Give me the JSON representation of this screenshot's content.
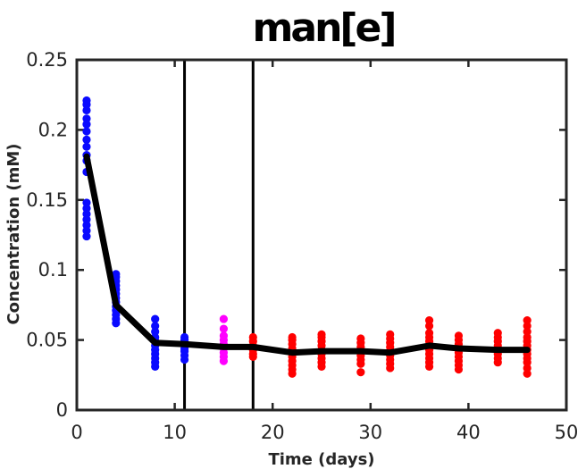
{
  "chart_data": {
    "type": "scatter",
    "title": "man[e]",
    "xlabel": "Time (days)",
    "ylabel": "Concentration (mM)",
    "xlim": [
      0,
      50
    ],
    "ylim": [
      0,
      0.25
    ],
    "xticks": [
      "0",
      "10",
      "20",
      "30",
      "40",
      "50"
    ],
    "yticks": [
      "0",
      "0.05",
      "0.1",
      "0.15",
      "0.2",
      "0.25"
    ],
    "xtick_values": [
      0,
      10,
      20,
      30,
      40,
      50
    ],
    "ytick_values": [
      0,
      0.05,
      0.1,
      0.15,
      0.2,
      0.25
    ],
    "grid": false,
    "vertical_lines": [
      11,
      18
    ],
    "series": [
      {
        "color": "#0a0aff",
        "points": [
          {
            "x": 1,
            "y": [
              0.124,
              0.128,
              0.132,
              0.136,
              0.14,
              0.144,
              0.148,
              0.17,
              0.178,
              0.182,
              0.188,
              0.193,
              0.199,
              0.204,
              0.208,
              0.214,
              0.218,
              0.221
            ]
          },
          {
            "x": 4,
            "y": [
              0.062,
              0.065,
              0.068,
              0.071,
              0.074,
              0.077,
              0.08,
              0.083,
              0.086,
              0.089,
              0.092,
              0.095,
              0.097
            ]
          },
          {
            "x": 8,
            "y": [
              0.031,
              0.034,
              0.037,
              0.04,
              0.043,
              0.046,
              0.049,
              0.052,
              0.056,
              0.06,
              0.065
            ]
          },
          {
            "x": 11,
            "y": [
              0.036,
              0.039,
              0.042,
              0.044,
              0.046,
              0.048,
              0.05,
              0.052
            ]
          }
        ]
      },
      {
        "color": "#ff00ff",
        "points": [
          {
            "x": 15,
            "y": [
              0.035,
              0.038,
              0.041,
              0.044,
              0.047,
              0.05,
              0.053,
              0.058,
              0.065
            ]
          }
        ]
      },
      {
        "color": "#ff0000",
        "points": [
          {
            "x": 18,
            "y": [
              0.038,
              0.04,
              0.043,
              0.046,
              0.049,
              0.052
            ]
          },
          {
            "x": 22,
            "y": [
              0.026,
              0.029,
              0.032,
              0.035,
              0.038,
              0.041,
              0.044,
              0.047,
              0.05,
              0.052
            ]
          },
          {
            "x": 25,
            "y": [
              0.031,
              0.034,
              0.037,
              0.04,
              0.043,
              0.046,
              0.049,
              0.052,
              0.054
            ]
          },
          {
            "x": 29,
            "y": [
              0.027,
              0.033,
              0.036,
              0.039,
              0.042,
              0.045,
              0.048,
              0.051
            ]
          },
          {
            "x": 32,
            "y": [
              0.03,
              0.033,
              0.036,
              0.039,
              0.042,
              0.045,
              0.048,
              0.051,
              0.054
            ]
          },
          {
            "x": 36,
            "y": [
              0.031,
              0.034,
              0.037,
              0.04,
              0.043,
              0.046,
              0.049,
              0.052,
              0.055,
              0.06,
              0.064
            ]
          },
          {
            "x": 39,
            "y": [
              0.029,
              0.032,
              0.035,
              0.038,
              0.041,
              0.044,
              0.047,
              0.05,
              0.053
            ]
          },
          {
            "x": 43,
            "y": [
              0.034,
              0.037,
              0.04,
              0.043,
              0.046,
              0.049,
              0.052,
              0.055
            ]
          },
          {
            "x": 46,
            "y": [
              0.026,
              0.03,
              0.034,
              0.037,
              0.04,
              0.043,
              0.046,
              0.049,
              0.052,
              0.056,
              0.06,
              0.064
            ]
          }
        ]
      }
    ],
    "mean_line": {
      "color": "#000000",
      "x": [
        1,
        4,
        8,
        11,
        15,
        18,
        22,
        25,
        29,
        32,
        36,
        39,
        43,
        46
      ],
      "y": [
        0.181,
        0.075,
        0.048,
        0.047,
        0.045,
        0.045,
        0.041,
        0.042,
        0.042,
        0.041,
        0.046,
        0.044,
        0.043,
        0.043
      ]
    }
  }
}
